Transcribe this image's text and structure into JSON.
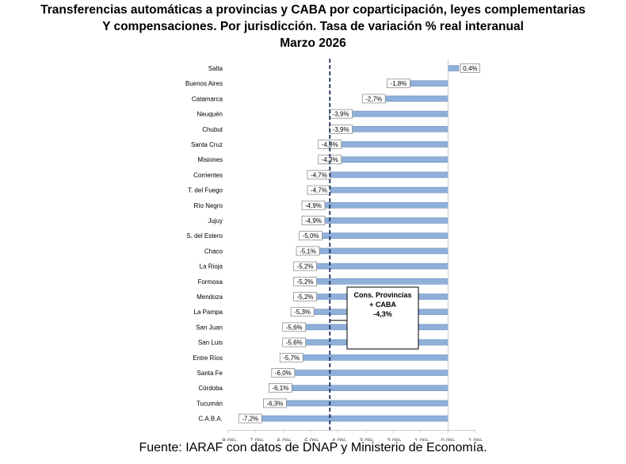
{
  "chart_data": {
    "type": "bar",
    "orientation": "horizontal",
    "title_lines": [
      "Transferencias automáticas a provincias y CABA por coparticipación, leyes complementarias",
      "Y compensaciones. Por jurisdicción. Tasa de variación % real interanual",
      "Marzo 2026"
    ],
    "categories": [
      "Salta",
      "Buenos Aires",
      "Catamarca",
      "Neuquén",
      "Chubut",
      "Santa Cruz",
      "Misiones",
      "Corrientes",
      "T. del Fuego",
      "Río Negro",
      "Jujuy",
      "S. del Estero",
      "Chaco",
      "La Rioja",
      "Formosa",
      "Mendoza",
      "La Pampa",
      "San Juan",
      "San Luis",
      "Entre Ríos",
      "Santa Fe",
      "Córdoba",
      "Tucumán",
      "C.A.B.A."
    ],
    "values": [
      0.4,
      -1.8,
      -2.7,
      -3.9,
      -3.9,
      -4.3,
      -4.3,
      -4.7,
      -4.7,
      -4.9,
      -4.9,
      -5.0,
      -5.1,
      -5.2,
      -5.2,
      -5.2,
      -5.3,
      -5.6,
      -5.6,
      -5.7,
      -6.0,
      -6.1,
      -6.3,
      -7.2
    ],
    "data_labels": [
      "0,4%",
      "-1,8%",
      "-2,7%",
      "-3,9%",
      "-3,9%",
      "-4,3%",
      "-4,3%",
      "-4,7%",
      "-4,7%",
      "-4,9%",
      "-4,9%",
      "-5,0%",
      "-5,1%",
      "-5,2%",
      "-5,2%",
      "-5,2%",
      "-5,3%",
      "-5,6%",
      "-5,6%",
      "-5,7%",
      "-6,0%",
      "-6,1%",
      "-6,3%",
      "-7,2%"
    ],
    "xlim": [
      -8.0,
      1.0
    ],
    "xticks": [
      -8,
      -7,
      -6,
      -5,
      -4,
      -3,
      -2,
      -1,
      0,
      1
    ],
    "xtick_labels": [
      "-8,0%",
      "-7,0%",
      "-6,0%",
      "-5,0%",
      "-4,0%",
      "-3,0%",
      "-2,0%",
      "-1,0%",
      "0,0%",
      "1,0%"
    ],
    "reference_line": {
      "value": -4.3,
      "style": "dashed",
      "color": "#1f2d5c"
    },
    "annotation": {
      "lines": [
        "Cons. Provincias",
        "+ CABA",
        "-4,3%"
      ]
    },
    "bar_color": "#8eb0da",
    "bar_edge_color": "#6d8fbd",
    "grid": false,
    "legend": "none"
  },
  "source": "Fuente: IARAF con datos de DNAP y Ministerio de Economía."
}
